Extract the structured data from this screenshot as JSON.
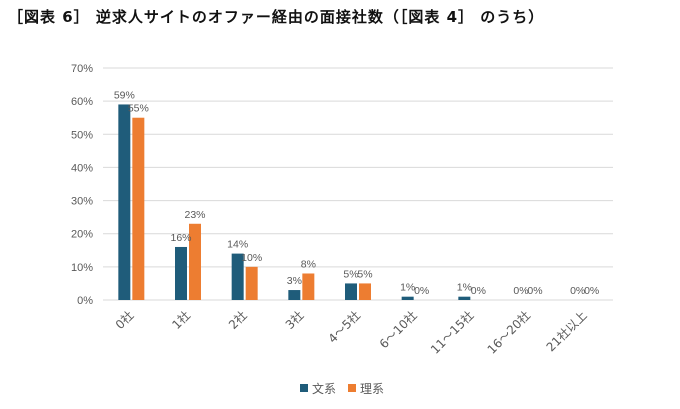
{
  "title": "［図表 6］ 逆求人サイトのオファー経由の面接社数（［図表 4］ のうち）",
  "colors": {
    "bunkei": "#1f5c7a",
    "rikei": "#ed7d31",
    "grid": "#d9d9d9",
    "text": "#595959"
  },
  "chart_data": {
    "type": "bar",
    "categories": [
      "0社",
      "1社",
      "2社",
      "3社",
      "4〜5社",
      "6〜10社",
      "11〜15社",
      "16〜20社",
      "21社以上"
    ],
    "series": [
      {
        "name": "文系",
        "values": [
          59,
          16,
          14,
          3,
          5,
          1,
          1,
          0,
          0
        ],
        "labels": [
          "59%",
          "16%",
          "14%",
          "3%",
          "5%",
          "1%",
          "1%",
          "0%",
          "0%"
        ]
      },
      {
        "name": "理系",
        "values": [
          55,
          23,
          10,
          8,
          5,
          0,
          0,
          0,
          0
        ],
        "labels": [
          "55%",
          "23%",
          "10%",
          "8%",
          "5%",
          "0%",
          "0%",
          "0%",
          "0%"
        ]
      }
    ],
    "ylim": [
      0,
      70
    ],
    "yticks": [
      "0%",
      "10%",
      "20%",
      "30%",
      "40%",
      "50%",
      "60%",
      "70%"
    ],
    "grid": true,
    "legend_position": "bottom"
  }
}
